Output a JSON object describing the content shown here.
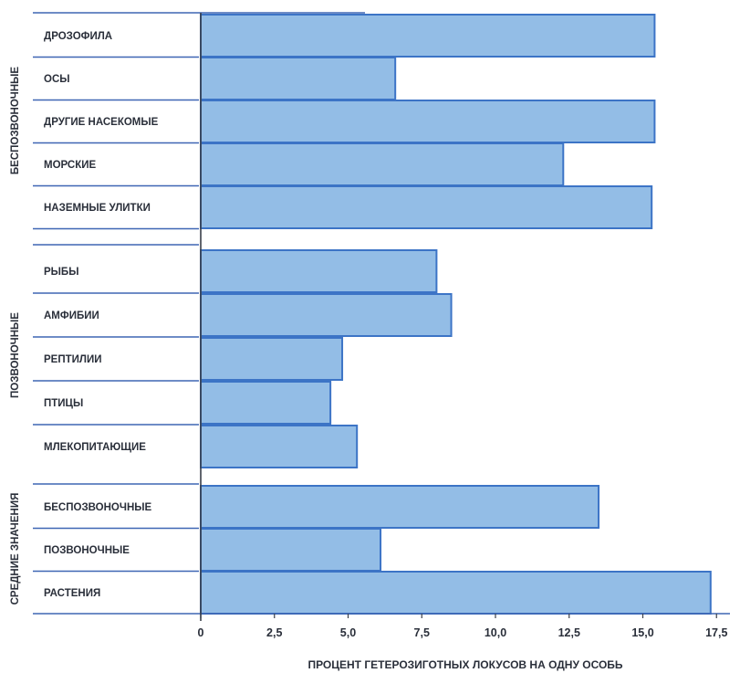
{
  "chart_data": {
    "type": "bar",
    "orientation": "horizontal",
    "xlabel": "ПРОЦЕНТ ГЕТЕРОЗИГОТНЫХ ЛОКУСОВ НА ОДНУ ОСОБЬ",
    "xlim": [
      0,
      17.5
    ],
    "xticks": [
      "0",
      "2,5",
      "5,0",
      "7,5",
      "10,0",
      "12,5",
      "15,0",
      "17,5"
    ],
    "grid": false,
    "bar_color": "#93bde6",
    "bar_edge_color": "#3c74c6",
    "line_color": "#3f66b4",
    "groups": [
      {
        "name": "БЕСПОЗВОНОЧНЫЕ",
        "categories": [
          "ДРОЗОФИЛА",
          "ОСЫ",
          "ДРУГИЕ НАСЕКОМЫЕ",
          "МОРСКИЕ",
          "НАЗЕМНЫЕ УЛИТКИ"
        ],
        "values": [
          15.4,
          6.6,
          15.4,
          12.3,
          15.3
        ]
      },
      {
        "name": "ПОЗВОНОЧНЫЕ",
        "categories": [
          "РЫБЫ",
          "АМФИБИИ",
          "РЕПТИЛИИ",
          "ПТИЦЫ",
          "МЛЕКОПИТАЮЩИЕ"
        ],
        "values": [
          8.0,
          8.5,
          4.8,
          4.4,
          5.3
        ]
      },
      {
        "name": "СРЕДНИЕ ЗНАЧЕНИЯ",
        "categories": [
          "БЕСПОЗВОНОЧНЫЕ",
          "ПОЗВОНОЧНЫЕ",
          "РАСТЕНИЯ"
        ],
        "values": [
          13.5,
          6.1,
          17.3
        ]
      }
    ]
  }
}
